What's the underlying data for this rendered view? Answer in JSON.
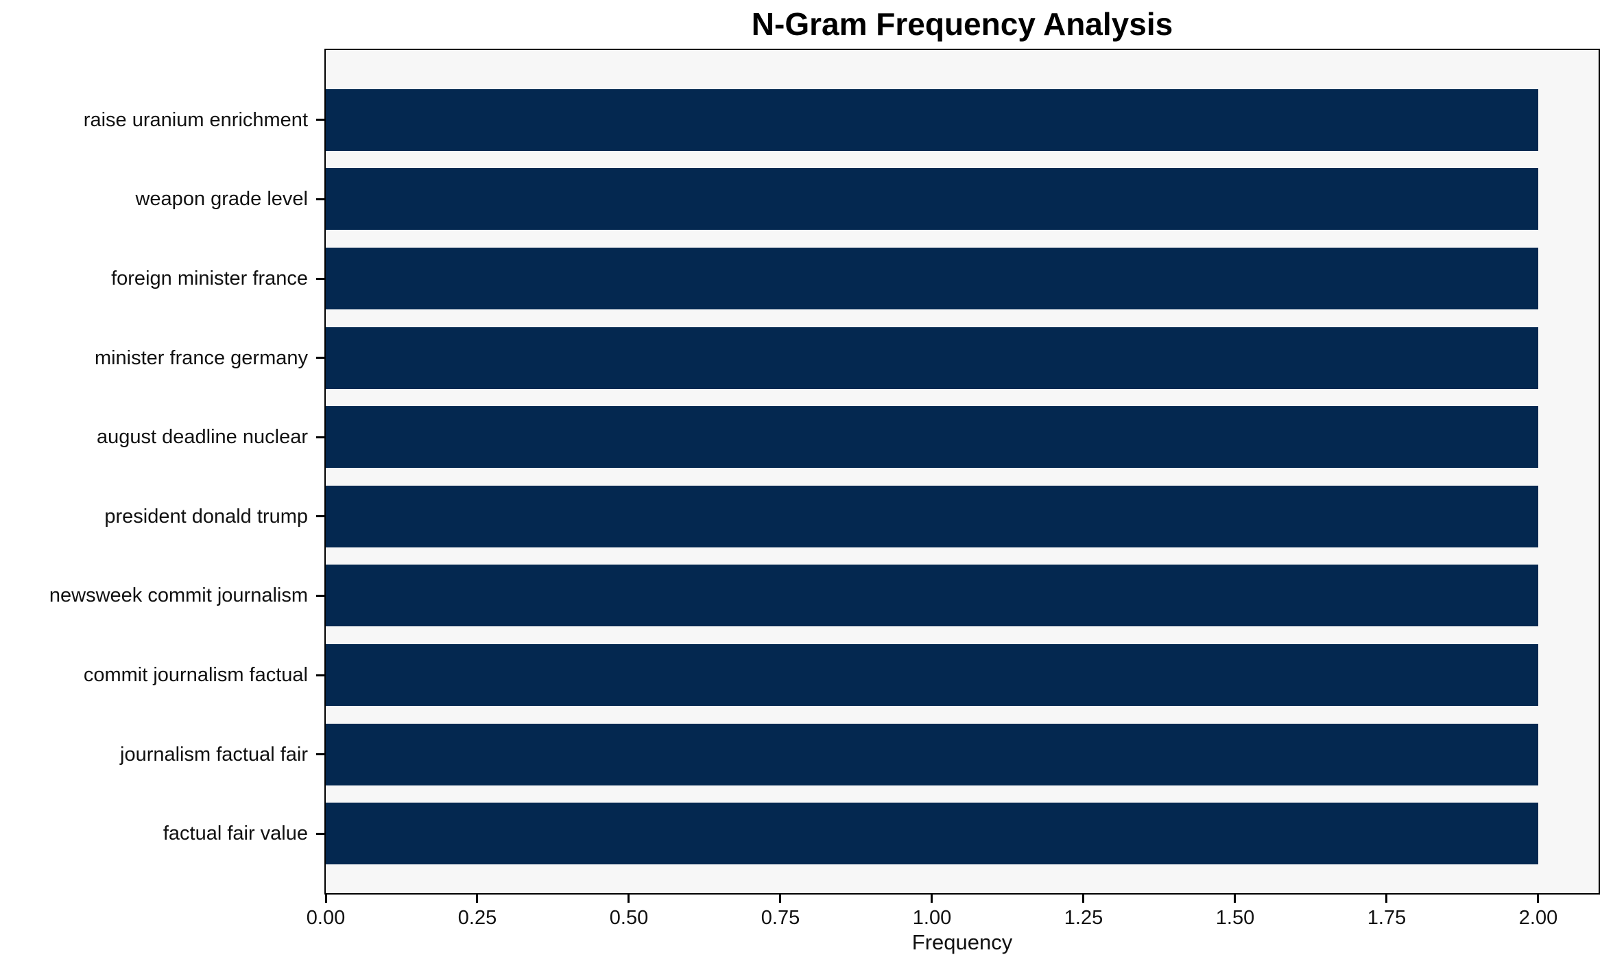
{
  "chart_data": {
    "type": "bar",
    "orientation": "horizontal",
    "title": "N-Gram Frequency Analysis",
    "xlabel": "Frequency",
    "ylabel": "",
    "categories": [
      "raise uranium enrichment",
      "weapon grade level",
      "foreign minister france",
      "minister france germany",
      "august deadline nuclear",
      "president donald trump",
      "newsweek commit journalism",
      "commit journalism factual",
      "journalism factual fair",
      "factual fair value"
    ],
    "values": [
      2,
      2,
      2,
      2,
      2,
      2,
      2,
      2,
      2,
      2
    ],
    "xlim": [
      0,
      2.1
    ],
    "xticks": [
      0.0,
      0.25,
      0.5,
      0.75,
      1.0,
      1.25,
      1.5,
      1.75,
      2.0
    ],
    "xtick_labels": [
      "0.00",
      "0.25",
      "0.50",
      "0.75",
      "1.00",
      "1.25",
      "1.50",
      "1.75",
      "2.00"
    ],
    "grid": false,
    "legend": null,
    "colors": {
      "bar": "#042850",
      "plot_background": "#f7f7f7",
      "figure_background": "#ffffff",
      "spine": "#000000",
      "text": "#111111"
    }
  }
}
